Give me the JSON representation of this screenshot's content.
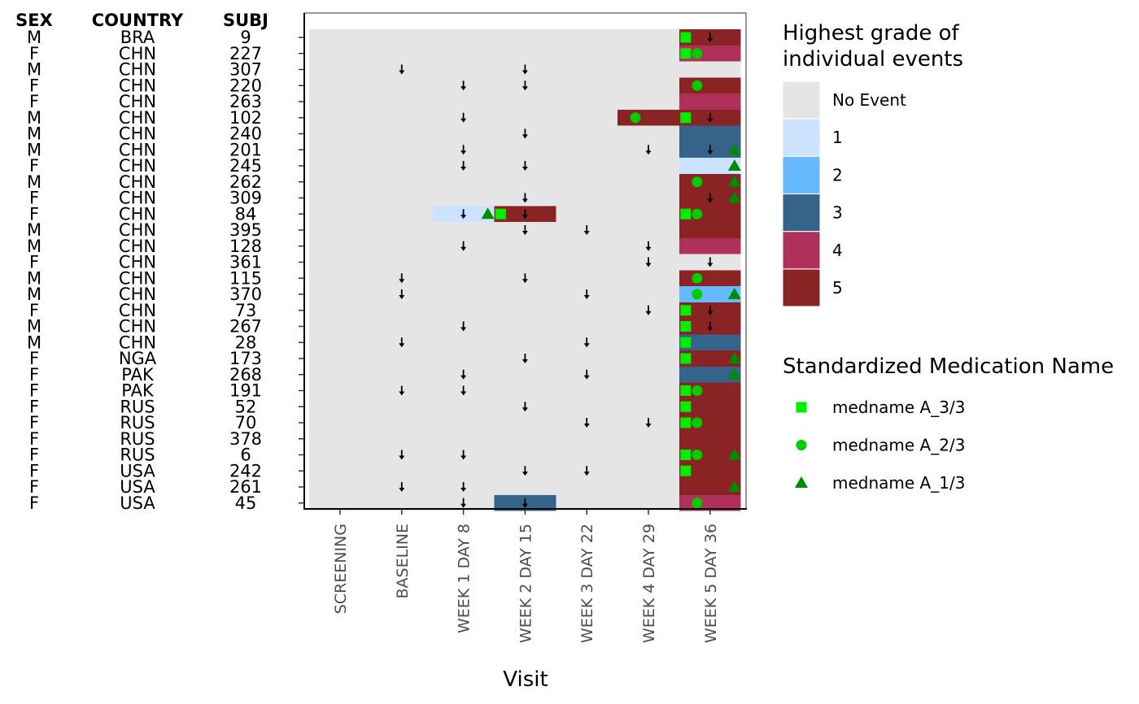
{
  "chart_data": {
    "type": "heatmap",
    "title": "",
    "xlabel": "Visit",
    "ylabel": "",
    "table_headers": [
      "SEX",
      "COUNTRY",
      "SUBJ"
    ],
    "visits": [
      "SCREENING",
      "BASELINE",
      "WEEK 1 DAY 8",
      "WEEK 2 DAY 15",
      "WEEK 3 DAY 22",
      "WEEK 4 DAY 29",
      "WEEK 5 DAY 36"
    ],
    "subjects": [
      {
        "sex": "M",
        "country": "BRA",
        "subj": "9",
        "grades": [
          0,
          0,
          0,
          0,
          0,
          0,
          5
        ],
        "arrows": [
          6
        ],
        "meds": [
          [
            6,
            "A_3/3"
          ]
        ]
      },
      {
        "sex": "F",
        "country": "CHN",
        "subj": "227",
        "grades": [
          0,
          0,
          0,
          0,
          0,
          0,
          4
        ],
        "arrows": [],
        "meds": [
          [
            6,
            "A_3/3"
          ],
          [
            6,
            "A_2/3"
          ]
        ]
      },
      {
        "sex": "M",
        "country": "CHN",
        "subj": "307",
        "grades": [
          0,
          0,
          0,
          0,
          0,
          0,
          0
        ],
        "arrows": [
          1,
          3
        ],
        "meds": []
      },
      {
        "sex": "F",
        "country": "CHN",
        "subj": "220",
        "grades": [
          0,
          0,
          0,
          0,
          0,
          0,
          5
        ],
        "arrows": [
          2,
          3
        ],
        "meds": [
          [
            6,
            "A_2/3"
          ]
        ]
      },
      {
        "sex": "F",
        "country": "CHN",
        "subj": "263",
        "grades": [
          0,
          0,
          0,
          0,
          0,
          0,
          4
        ],
        "arrows": [],
        "meds": []
      },
      {
        "sex": "M",
        "country": "CHN",
        "subj": "102",
        "grades": [
          0,
          0,
          0,
          0,
          0,
          5,
          5
        ],
        "arrows": [
          2,
          6
        ],
        "meds": [
          [
            5,
            "A_2/3"
          ],
          [
            6,
            "A_3/3"
          ]
        ]
      },
      {
        "sex": "M",
        "country": "CHN",
        "subj": "240",
        "grades": [
          0,
          0,
          0,
          0,
          0,
          0,
          3
        ],
        "arrows": [
          3
        ],
        "meds": []
      },
      {
        "sex": "M",
        "country": "CHN",
        "subj": "201",
        "grades": [
          0,
          0,
          0,
          0,
          0,
          0,
          3
        ],
        "arrows": [
          2,
          5,
          6
        ],
        "meds": [
          [
            6,
            "A_1/3"
          ]
        ]
      },
      {
        "sex": "F",
        "country": "CHN",
        "subj": "245",
        "grades": [
          0,
          0,
          0,
          0,
          0,
          0,
          1
        ],
        "arrows": [
          2,
          3
        ],
        "meds": [
          [
            6,
            "A_1/3"
          ]
        ]
      },
      {
        "sex": "M",
        "country": "CHN",
        "subj": "262",
        "grades": [
          0,
          0,
          0,
          0,
          0,
          0,
          5
        ],
        "arrows": [],
        "meds": [
          [
            6,
            "A_2/3"
          ],
          [
            6,
            "A_1/3"
          ]
        ]
      },
      {
        "sex": "F",
        "country": "CHN",
        "subj": "309",
        "grades": [
          0,
          0,
          0,
          0,
          0,
          0,
          5
        ],
        "arrows": [
          3,
          6
        ],
        "meds": [
          [
            6,
            "A_1/3"
          ]
        ]
      },
      {
        "sex": "F",
        "country": "CHN",
        "subj": "84",
        "grades": [
          0,
          0,
          1,
          5,
          0,
          0,
          5
        ],
        "arrows": [
          2,
          3
        ],
        "meds": [
          [
            2,
            "A_1/3"
          ],
          [
            3,
            "A_3/3"
          ],
          [
            6,
            "A_3/3"
          ],
          [
            6,
            "A_2/3"
          ]
        ]
      },
      {
        "sex": "M",
        "country": "CHN",
        "subj": "395",
        "grades": [
          0,
          0,
          0,
          0,
          0,
          0,
          5
        ],
        "arrows": [
          3,
          4
        ],
        "meds": []
      },
      {
        "sex": "M",
        "country": "CHN",
        "subj": "128",
        "grades": [
          0,
          0,
          0,
          0,
          0,
          0,
          4
        ],
        "arrows": [
          2,
          5
        ],
        "meds": []
      },
      {
        "sex": "F",
        "country": "CHN",
        "subj": "361",
        "grades": [
          0,
          0,
          0,
          0,
          0,
          0,
          0
        ],
        "arrows": [
          5,
          6
        ],
        "meds": []
      },
      {
        "sex": "M",
        "country": "CHN",
        "subj": "115",
        "grades": [
          0,
          0,
          0,
          0,
          0,
          0,
          5
        ],
        "arrows": [
          1,
          3
        ],
        "meds": [
          [
            6,
            "A_2/3"
          ]
        ]
      },
      {
        "sex": "M",
        "country": "CHN",
        "subj": "370",
        "grades": [
          0,
          0,
          0,
          0,
          0,
          0,
          2
        ],
        "arrows": [
          1,
          4
        ],
        "meds": [
          [
            6,
            "A_2/3"
          ],
          [
            6,
            "A_1/3"
          ]
        ]
      },
      {
        "sex": "F",
        "country": "CHN",
        "subj": "73",
        "grades": [
          0,
          0,
          0,
          0,
          0,
          0,
          5
        ],
        "arrows": [
          5,
          6
        ],
        "meds": [
          [
            6,
            "A_3/3"
          ]
        ]
      },
      {
        "sex": "M",
        "country": "CHN",
        "subj": "267",
        "grades": [
          0,
          0,
          0,
          0,
          0,
          0,
          5
        ],
        "arrows": [
          2,
          6
        ],
        "meds": [
          [
            6,
            "A_3/3"
          ]
        ]
      },
      {
        "sex": "M",
        "country": "CHN",
        "subj": "28",
        "grades": [
          0,
          0,
          0,
          0,
          0,
          0,
          3
        ],
        "arrows": [
          1,
          4
        ],
        "meds": [
          [
            6,
            "A_3/3"
          ]
        ]
      },
      {
        "sex": "F",
        "country": "NGA",
        "subj": "173",
        "grades": [
          0,
          0,
          0,
          0,
          0,
          0,
          5
        ],
        "arrows": [
          3
        ],
        "meds": [
          [
            6,
            "A_3/3"
          ],
          [
            6,
            "A_1/3"
          ]
        ]
      },
      {
        "sex": "F",
        "country": "PAK",
        "subj": "268",
        "grades": [
          0,
          0,
          0,
          0,
          0,
          0,
          3
        ],
        "arrows": [
          2,
          4
        ],
        "meds": [
          [
            6,
            "A_1/3"
          ]
        ]
      },
      {
        "sex": "F",
        "country": "PAK",
        "subj": "191",
        "grades": [
          0,
          0,
          0,
          0,
          0,
          0,
          5
        ],
        "arrows": [
          1,
          2
        ],
        "meds": [
          [
            6,
            "A_3/3"
          ],
          [
            6,
            "A_2/3"
          ]
        ]
      },
      {
        "sex": "F",
        "country": "RUS",
        "subj": "52",
        "grades": [
          0,
          0,
          0,
          0,
          0,
          0,
          5
        ],
        "arrows": [
          3
        ],
        "meds": [
          [
            6,
            "A_3/3"
          ]
        ]
      },
      {
        "sex": "F",
        "country": "RUS",
        "subj": "70",
        "grades": [
          0,
          0,
          0,
          0,
          0,
          0,
          5
        ],
        "arrows": [
          4,
          5
        ],
        "meds": [
          [
            6,
            "A_3/3"
          ],
          [
            6,
            "A_2/3"
          ]
        ]
      },
      {
        "sex": "F",
        "country": "RUS",
        "subj": "378",
        "grades": [
          0,
          0,
          0,
          0,
          0,
          0,
          5
        ],
        "arrows": [],
        "meds": []
      },
      {
        "sex": "F",
        "country": "RUS",
        "subj": "6",
        "grades": [
          0,
          0,
          0,
          0,
          0,
          0,
          5
        ],
        "arrows": [
          1,
          2
        ],
        "meds": [
          [
            6,
            "A_3/3"
          ],
          [
            6,
            "A_2/3"
          ],
          [
            6,
            "A_1/3"
          ]
        ]
      },
      {
        "sex": "F",
        "country": "USA",
        "subj": "242",
        "grades": [
          0,
          0,
          0,
          0,
          0,
          0,
          5
        ],
        "arrows": [
          3,
          4
        ],
        "meds": [
          [
            6,
            "A_3/3"
          ]
        ]
      },
      {
        "sex": "F",
        "country": "USA",
        "subj": "261",
        "grades": [
          0,
          0,
          0,
          0,
          0,
          0,
          5
        ],
        "arrows": [
          1,
          2
        ],
        "meds": [
          [
            6,
            "A_1/3"
          ]
        ]
      },
      {
        "sex": "F",
        "country": "USA",
        "subj": "45",
        "grades": [
          0,
          0,
          0,
          3,
          0,
          0,
          4
        ],
        "arrows": [
          2,
          3
        ],
        "meds": [
          [
            6,
            "A_2/3"
          ]
        ]
      }
    ],
    "grade_legend": {
      "title_line1": "Highest grade of",
      "title_line2": "individual events",
      "items": [
        {
          "label": "No Event",
          "color": "#e5e5e5"
        },
        {
          "label": "1",
          "color": "#cce3ff"
        },
        {
          "label": "2",
          "color": "#66b8ff"
        },
        {
          "label": "3",
          "color": "#36638a"
        },
        {
          "label": "4",
          "color": "#b0305c"
        },
        {
          "label": "5",
          "color": "#8a2323"
        }
      ]
    },
    "med_legend": {
      "title": "Standardized Medication Name",
      "items": [
        {
          "key": "A_3/3",
          "label": "medname A_3/3",
          "shape": "square",
          "color": "#00ee00"
        },
        {
          "key": "A_2/3",
          "label": "medname A_2/3",
          "shape": "circle",
          "color": "#00cc00"
        },
        {
          "key": "A_1/3",
          "label": "medname A_1/3",
          "shape": "triangle",
          "color": "#008b00"
        }
      ]
    },
    "grid": false,
    "legend_position": "right"
  }
}
